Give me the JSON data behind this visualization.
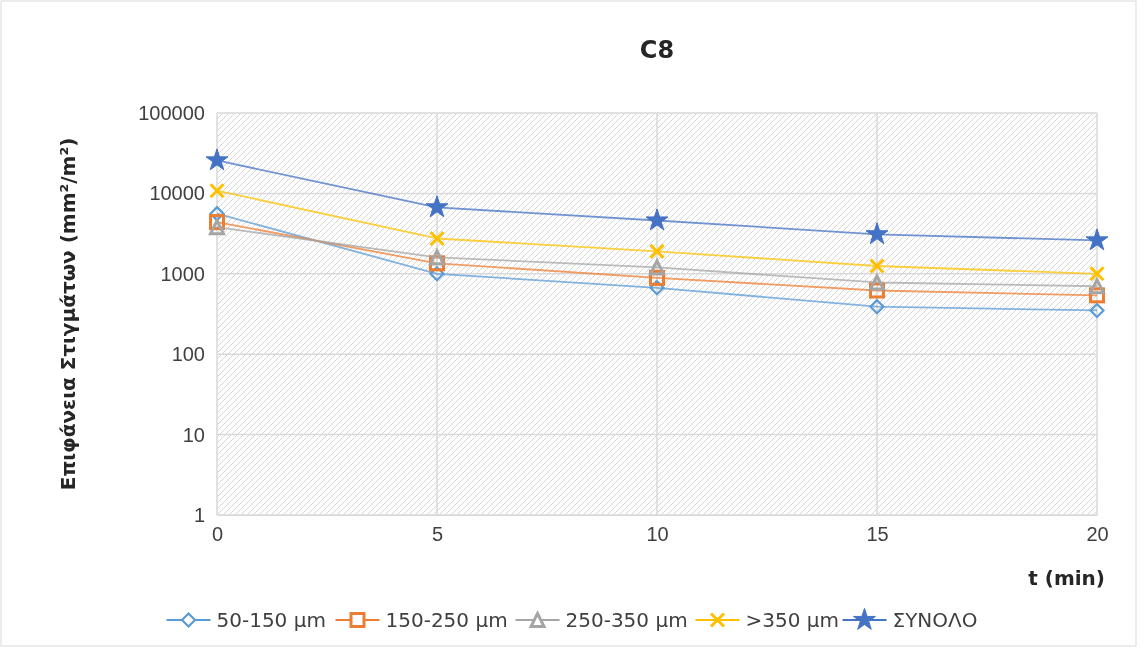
{
  "chart_data": {
    "type": "line",
    "title": "C8",
    "xlabel": "t (min)",
    "ylabel": "Επιφάνεια Στιγμάτων (mm²/m²)",
    "log": "y",
    "x": [
      0,
      5,
      10,
      15,
      20
    ],
    "xlim": [
      0,
      20
    ],
    "xticks": [
      0,
      5,
      10,
      15,
      20
    ],
    "ylim": [
      1,
      100000
    ],
    "yticks": [
      1,
      10,
      100,
      1000,
      10000,
      100000
    ],
    "grid": true,
    "legend": "bottom",
    "series": [
      {
        "name": "50-150 μm",
        "color": "#5b9bd5",
        "marker": "diamond",
        "values": [
          5600,
          1000,
          670,
          390,
          350
        ]
      },
      {
        "name": "150-250 μm",
        "color": "#ed7d31",
        "marker": "square",
        "values": [
          4400,
          1350,
          890,
          620,
          540
        ]
      },
      {
        "name": "250-350 μm",
        "color": "#a5a5a5",
        "marker": "triangle",
        "values": [
          3800,
          1600,
          1200,
          780,
          700
        ]
      },
      {
        "name": ">350 μm",
        "color": "#ffc000",
        "marker": "cross",
        "values": [
          10800,
          2750,
          1900,
          1250,
          1000
        ]
      },
      {
        "name": "ΣΥΝΟΛΟ",
        "color": "#4472c4",
        "marker": "star",
        "values": [
          25700,
          6700,
          4600,
          3100,
          2600
        ]
      }
    ]
  }
}
